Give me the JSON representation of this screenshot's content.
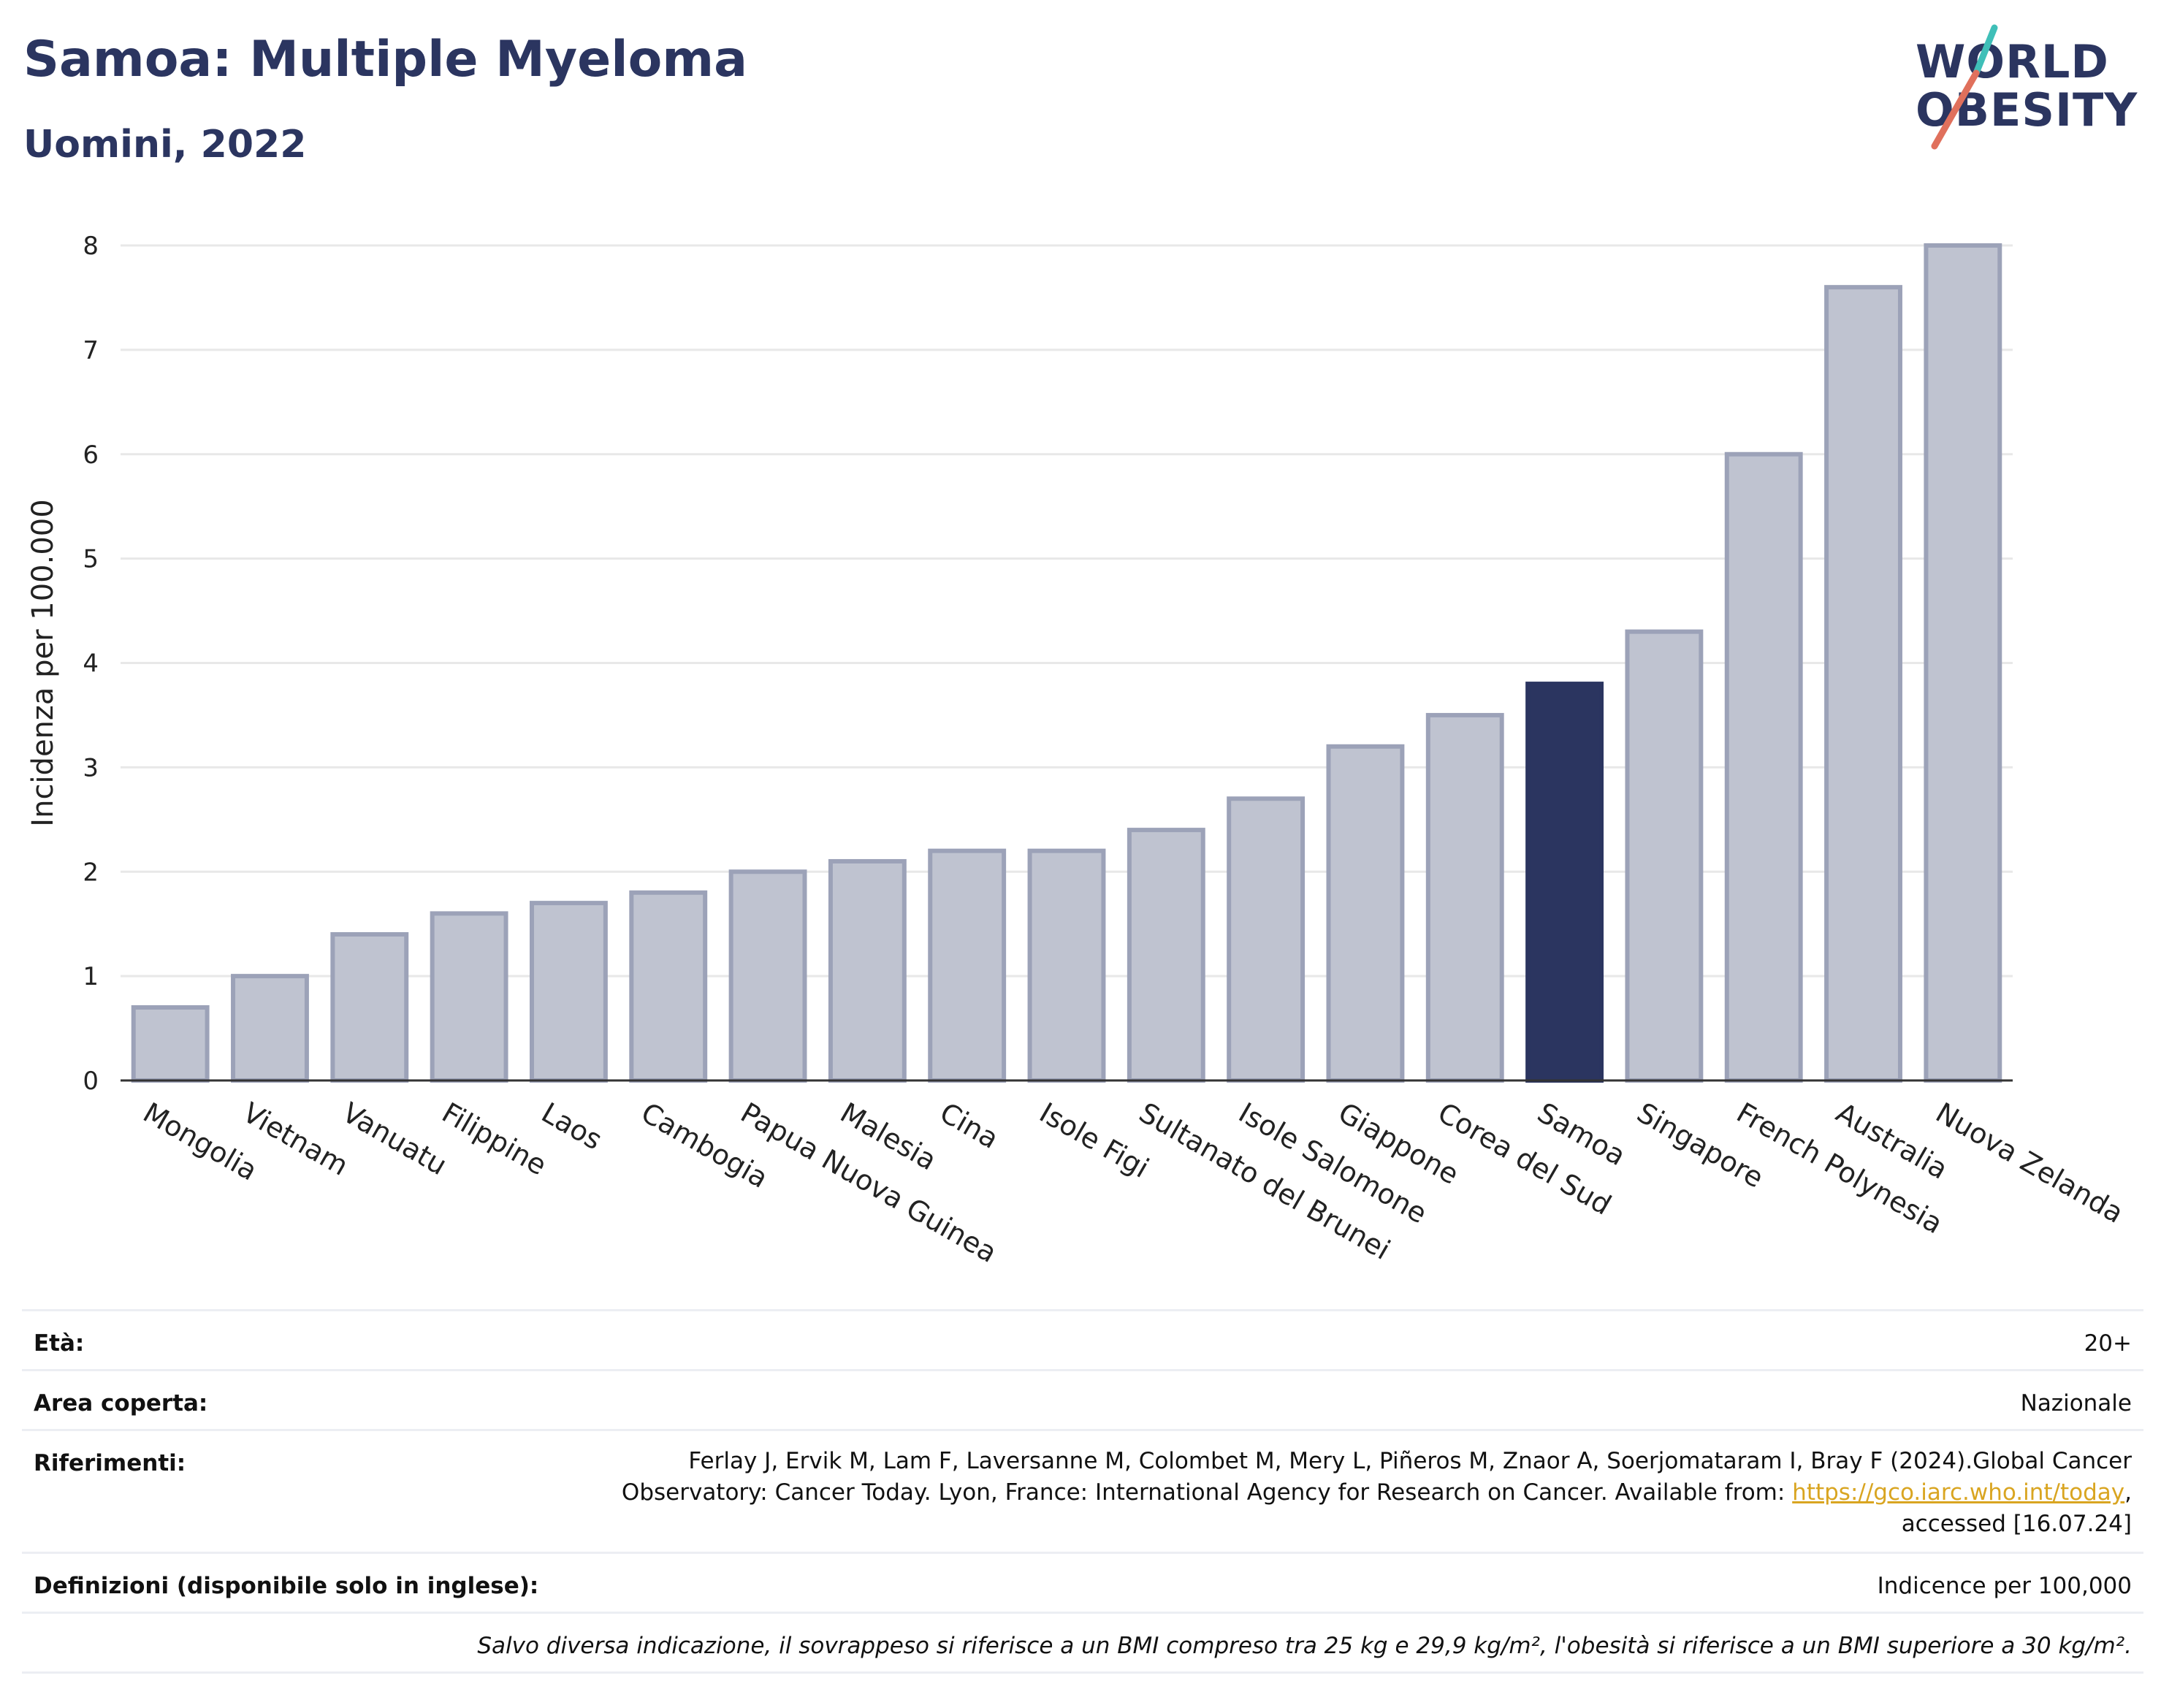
{
  "header": {
    "title": "Samoa: Multiple Myeloma",
    "subtitle": "Uomini, 2022"
  },
  "logo": {
    "line1": "WORLD",
    "line2": "OBESITY"
  },
  "chart_data": {
    "type": "bar",
    "categories": [
      "Mongolia",
      "Vietnam",
      "Vanuatu",
      "Filippine",
      "Laos",
      "Cambogia",
      "Papua Nuova Guinea",
      "Malesia",
      "Cina",
      "Isole Figi",
      "Sultanato del Brunei",
      "Isole Salomone",
      "Giappone",
      "Corea del Sud",
      "Samoa",
      "Singapore",
      "French Polynesia",
      "Australia",
      "Nuova Zelanda"
    ],
    "values": [
      0.7,
      1.0,
      1.4,
      1.6,
      1.7,
      1.8,
      2.0,
      2.1,
      2.2,
      2.2,
      2.4,
      2.7,
      3.2,
      3.5,
      3.8,
      4.3,
      6.0,
      7.6,
      8.0
    ],
    "highlight": "Samoa",
    "ylabel": "Incidenza per 100.000",
    "ylim": [
      0,
      8
    ],
    "yticks": [
      0,
      1,
      2,
      3,
      4,
      5,
      6,
      7,
      8
    ],
    "grid": true,
    "colors": {
      "bar_fill": "#bfc3d0",
      "bar_stroke": "#9ca2b8",
      "highlight": "#2b3560",
      "grid": "#e8e8e8",
      "axis": "#333333"
    }
  },
  "info": {
    "age": {
      "label": "Età:",
      "value": "20+"
    },
    "area": {
      "label": "Area coperta:",
      "value": "Nazionale"
    },
    "references": {
      "label": "Riferimenti:",
      "line1": "Ferlay J, Ervik M, Lam F, Laversanne M, Colombet M, Mery L, Piñeros M, Znaor A, Soerjomataram I, Bray F (2024).Global Cancer",
      "line2_prefix": "Observatory: Cancer Today. Lyon, France: International Agency for Research on Cancer. Available from: ",
      "link": "https://gco.iarc.who.int/today",
      "line2_suffix": ",",
      "line3": "accessed [16.07.24]"
    },
    "definitions": {
      "label": "Definizioni (disponibile solo in inglese):",
      "value": "Indicence per 100,000"
    },
    "note": "Salvo diversa indicazione, il sovrappeso si riferisce a un BMI compreso tra 25 kg e 29,9 kg/m², l'obesità si riferisce a un BMI superiore a 30 kg/m²."
  }
}
